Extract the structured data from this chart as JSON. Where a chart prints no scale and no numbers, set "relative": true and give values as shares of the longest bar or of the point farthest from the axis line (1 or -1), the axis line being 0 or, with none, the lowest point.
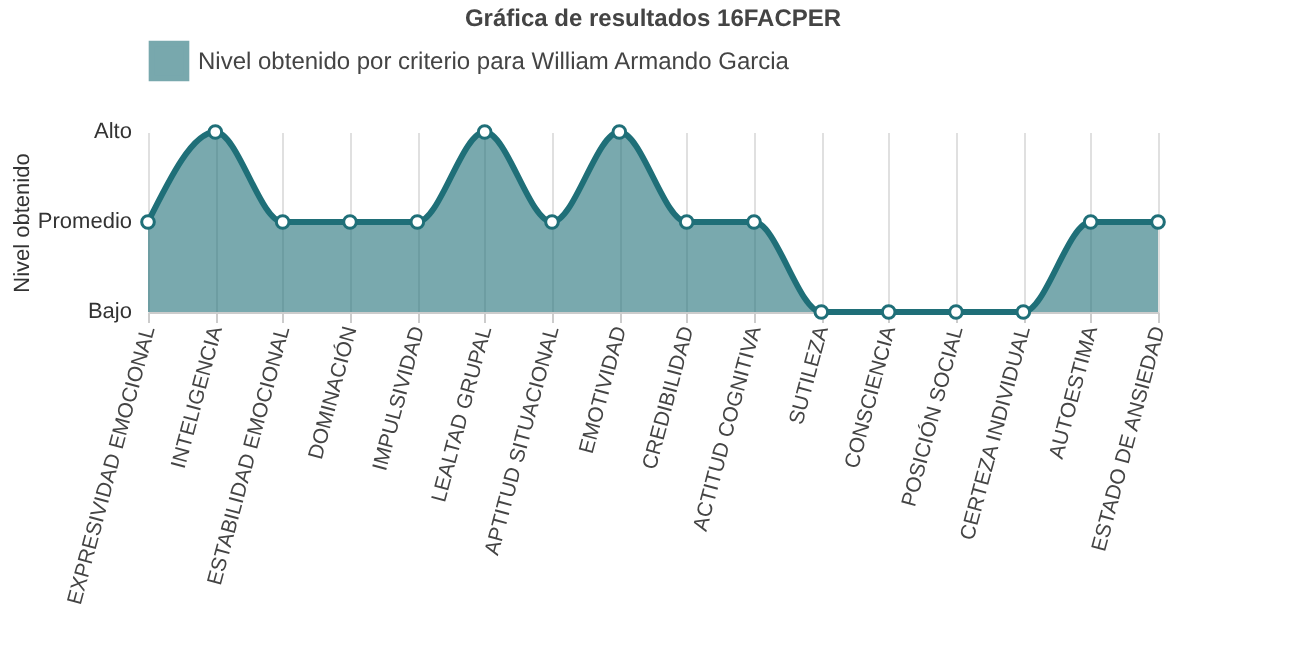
{
  "chart_data": {
    "type": "area",
    "title": "Gráfica de resultados 16FACPER",
    "ylabel": "Nivel obtenido",
    "relative": true,
    "annotations": [
      "Alto",
      "Promedio",
      "Bajo"
    ],
    "categories": [
      "EXPRESIVIDAD EMOCIONAL",
      "INTELIGENCIA",
      "ESTABILIDAD EMOCIONAL",
      "DOMINACIÓN",
      "IMPULSIVIDAD",
      "LEALTAD GRUPAL",
      "APTITUD SITUACIONAL",
      "EMOTIVIDAD",
      "CREDIBILIDAD",
      "ACTITUD COGNITIVA",
      "SUTILEZA",
      "CONSCIENCIA",
      "POSICIÓN SOCIAL",
      "CERTEZA INDIVIDUAL",
      "AUTOESTIMA",
      "ESTADO DE ANSIEDAD"
    ],
    "series": [
      {
        "name": "Nivel obtenido por criterio para William Armando Garcia",
        "color": "#1f6f78",
        "values": [
          0.5,
          1,
          0.5,
          0.5,
          0.5,
          1,
          0.5,
          1,
          0.5,
          0.5,
          0,
          0,
          0,
          0,
          0.5,
          0.5
        ]
      }
    ],
    "grid": "x",
    "legend": "top",
    "marker": "circle",
    "line_style": "solid"
  }
}
